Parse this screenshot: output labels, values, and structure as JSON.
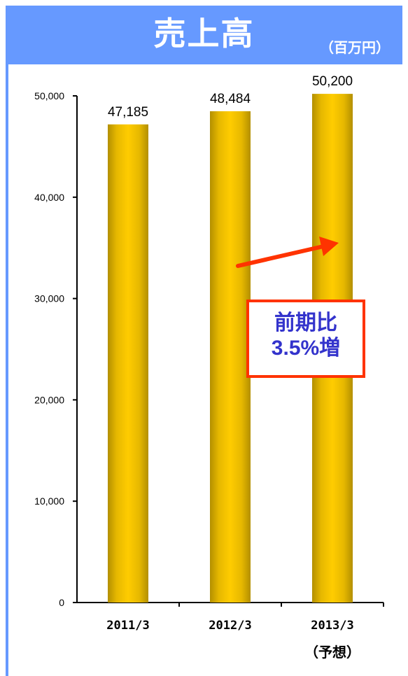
{
  "header": {
    "title": "売上高",
    "unit": "（百万円）"
  },
  "annotation": {
    "line1": "前期比",
    "line2": "3.5%増"
  },
  "colors": {
    "header_bg": "#6699ff",
    "bar_light": "#ffcc00",
    "bar_dark": "#b38f00",
    "arrow": "#ff3300",
    "badge_text": "#3333cc"
  },
  "chart_data": {
    "type": "bar",
    "title": "売上高",
    "ylabel": "",
    "xlabel": "",
    "categories": [
      "2011/3",
      "2012/3",
      "2013/3"
    ],
    "sub_labels": [
      "",
      "",
      "（予想）"
    ],
    "values": [
      47185,
      48484,
      50200
    ],
    "data_labels": [
      "47,185",
      "48,484",
      "50,200"
    ],
    "ylim": [
      0,
      50000
    ],
    "yticks": [
      0,
      10000,
      20000,
      30000,
      40000,
      50000
    ],
    "ytick_labels": [
      "0",
      "10,000",
      "20,000",
      "30,000",
      "40,000",
      "50,000"
    ],
    "grid": false,
    "legend": "none"
  }
}
